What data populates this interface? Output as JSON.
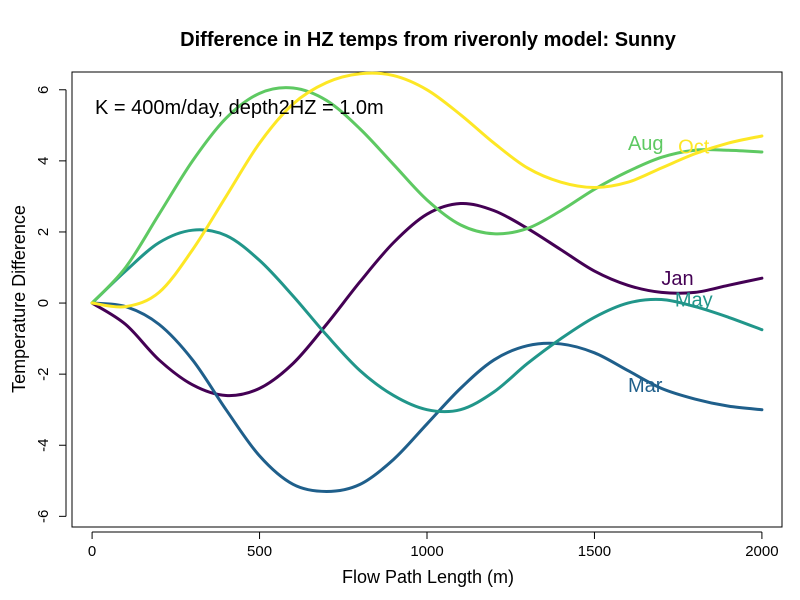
{
  "chart_data": {
    "type": "line",
    "title": "Difference in HZ temps from riveronly model: Sunny",
    "xlabel": "Flow Path Length (m)",
    "ylabel": "Temperature Difference",
    "annotation": "K = 400m/day, depth2HZ = 1.0m",
    "xlim": [
      -60,
      2060
    ],
    "ylim": [
      -6.3,
      6.5
    ],
    "xticks": [
      0,
      500,
      1000,
      1500,
      2000
    ],
    "yticks": [
      -6,
      -4,
      -2,
      0,
      2,
      4,
      6
    ],
    "xtick_labels": [
      "0",
      "500",
      "1000",
      "1500",
      "2000"
    ],
    "ytick_labels": [
      "-6",
      "-4",
      "-2",
      "0",
      "2",
      "4",
      "6"
    ],
    "grid": false,
    "series": [
      {
        "name": "Jan",
        "color": "#440154",
        "label_at": [
          1700,
          0.7
        ],
        "x": [
          0,
          100,
          200,
          300,
          400,
          500,
          600,
          700,
          800,
          900,
          1000,
          1100,
          1200,
          1300,
          1400,
          1500,
          1600,
          1700,
          1800,
          1900,
          2000
        ],
        "y": [
          0,
          -0.6,
          -1.6,
          -2.3,
          -2.6,
          -2.4,
          -1.7,
          -0.6,
          0.6,
          1.7,
          2.5,
          2.8,
          2.6,
          2.1,
          1.5,
          0.9,
          0.5,
          0.3,
          0.3,
          0.5,
          0.7
        ]
      },
      {
        "name": "Mar",
        "color": "#1f5f8b",
        "label_at": [
          1600,
          -2.3
        ],
        "x": [
          0,
          100,
          200,
          300,
          400,
          500,
          600,
          700,
          800,
          900,
          1000,
          1100,
          1200,
          1300,
          1400,
          1500,
          1600,
          1700,
          1800,
          1900,
          2000
        ],
        "y": [
          0,
          -0.1,
          -0.6,
          -1.6,
          -3.0,
          -4.3,
          -5.1,
          -5.3,
          -5.1,
          -4.4,
          -3.4,
          -2.4,
          -1.6,
          -1.2,
          -1.15,
          -1.4,
          -1.9,
          -2.4,
          -2.7,
          -2.9,
          -3.0
        ]
      },
      {
        "name": "May",
        "color": "#21968a",
        "label_at": [
          1740,
          0.1
        ],
        "x": [
          0,
          100,
          200,
          300,
          400,
          500,
          600,
          700,
          800,
          900,
          1000,
          1100,
          1200,
          1300,
          1400,
          1500,
          1600,
          1700,
          1800,
          1900,
          2000
        ],
        "y": [
          0,
          0.9,
          1.7,
          2.05,
          1.9,
          1.2,
          0.2,
          -0.9,
          -1.9,
          -2.6,
          -3.0,
          -3.0,
          -2.5,
          -1.7,
          -1.0,
          -0.4,
          0.0,
          0.1,
          -0.1,
          -0.4,
          -0.75
        ]
      },
      {
        "name": "Aug",
        "color": "#5ec962",
        "label_at": [
          1600,
          4.5
        ],
        "x": [
          0,
          100,
          200,
          300,
          400,
          500,
          600,
          700,
          800,
          900,
          1000,
          1100,
          1200,
          1300,
          1400,
          1500,
          1600,
          1700,
          1800,
          1900,
          2000
        ],
        "y": [
          0,
          1.0,
          2.5,
          4.0,
          5.2,
          5.9,
          6.05,
          5.7,
          4.9,
          3.9,
          2.9,
          2.2,
          1.95,
          2.1,
          2.6,
          3.2,
          3.7,
          4.1,
          4.3,
          4.3,
          4.25
        ]
      },
      {
        "name": "Oct",
        "color": "#fde725",
        "label_at": [
          1750,
          4.4
        ],
        "x": [
          0,
          100,
          200,
          300,
          400,
          500,
          600,
          700,
          800,
          900,
          1000,
          1100,
          1200,
          1300,
          1400,
          1500,
          1600,
          1700,
          1800,
          1900,
          2000
        ],
        "y": [
          0,
          -0.1,
          0.3,
          1.5,
          3.0,
          4.5,
          5.6,
          6.2,
          6.45,
          6.4,
          6.0,
          5.3,
          4.5,
          3.8,
          3.4,
          3.25,
          3.4,
          3.8,
          4.2,
          4.5,
          4.7
        ]
      }
    ]
  }
}
